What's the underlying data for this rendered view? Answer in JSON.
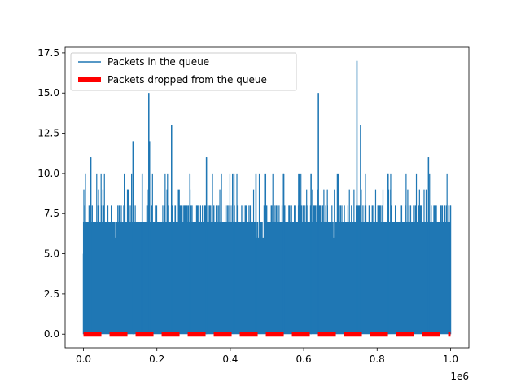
{
  "chart_data": {
    "type": "line",
    "title": "",
    "xlabel": "",
    "ylabel": "",
    "x_offset_label": "1e6",
    "xlim": [
      -50000,
      1050000
    ],
    "ylim": [
      -0.85,
      17.85
    ],
    "x_ticks": [
      0,
      200000,
      400000,
      600000,
      800000,
      1000000
    ],
    "x_tick_labels": [
      "0.0",
      "0.2",
      "0.4",
      "0.6",
      "0.8",
      "1.0"
    ],
    "y_ticks": [
      0,
      2.5,
      5,
      7.5,
      10,
      12.5,
      15,
      17.5
    ],
    "y_tick_labels": [
      "0.0",
      "2.5",
      "5.0",
      "7.5",
      "10.0",
      "12.5",
      "15.0",
      "17.5"
    ],
    "grid": false,
    "legend_position": "top-left",
    "series": [
      {
        "name": "Packets in the queue",
        "color": "#1f77b4",
        "style": "solid",
        "value_range": [
          0,
          17
        ],
        "typical_upper_band": [
          7,
          8
        ],
        "peaks": [
          {
            "x": 0,
            "y": 5
          },
          {
            "x": 5000,
            "y": 10
          },
          {
            "x": 20000,
            "y": 11
          },
          {
            "x": 120000,
            "y": 9
          },
          {
            "x": 135000,
            "y": 12
          },
          {
            "x": 160000,
            "y": 10
          },
          {
            "x": 178000,
            "y": 15
          },
          {
            "x": 180000,
            "y": 12
          },
          {
            "x": 240000,
            "y": 13
          },
          {
            "x": 290000,
            "y": 10
          },
          {
            "x": 335000,
            "y": 11
          },
          {
            "x": 410000,
            "y": 10
          },
          {
            "x": 470000,
            "y": 10
          },
          {
            "x": 545000,
            "y": 10
          },
          {
            "x": 620000,
            "y": 10
          },
          {
            "x": 640000,
            "y": 15
          },
          {
            "x": 745000,
            "y": 17
          },
          {
            "x": 755000,
            "y": 13
          },
          {
            "x": 830000,
            "y": 10
          },
          {
            "x": 940000,
            "y": 11
          },
          {
            "x": 1000000,
            "y": 8
          }
        ]
      },
      {
        "name": "Packets dropped from the queue",
        "color": "#ff0000",
        "style": "dashed",
        "x_range": [
          0,
          1000000
        ],
        "value": 0
      }
    ]
  }
}
